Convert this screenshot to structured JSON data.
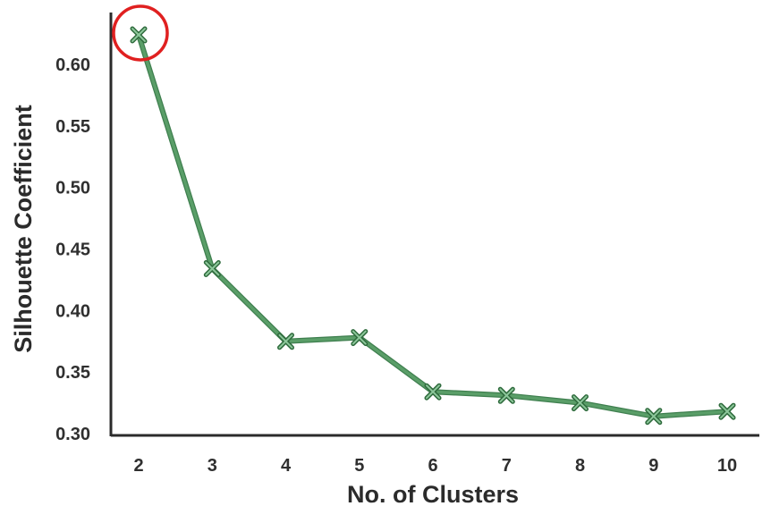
{
  "chart_data": {
    "type": "line",
    "xlabel": "No. of Clusters",
    "ylabel": "Silhouette Coefficient",
    "x": [
      2,
      3,
      4,
      5,
      6,
      7,
      8,
      9,
      10
    ],
    "y_ticks": [
      "0.30",
      "0.35",
      "0.40",
      "0.45",
      "0.50",
      "0.55",
      "0.60"
    ],
    "ylim": [
      0.3,
      0.63
    ],
    "xlim": [
      2,
      10
    ],
    "grid": false,
    "series": [
      {
        "values": [
          0.624,
          0.434,
          0.375,
          0.378,
          0.334,
          0.331,
          0.325,
          0.314,
          0.318
        ],
        "color": "#5a9e68",
        "marker": "x"
      }
    ],
    "annotation": {
      "type": "circle",
      "target_x": 2,
      "color": "#e02020"
    }
  }
}
